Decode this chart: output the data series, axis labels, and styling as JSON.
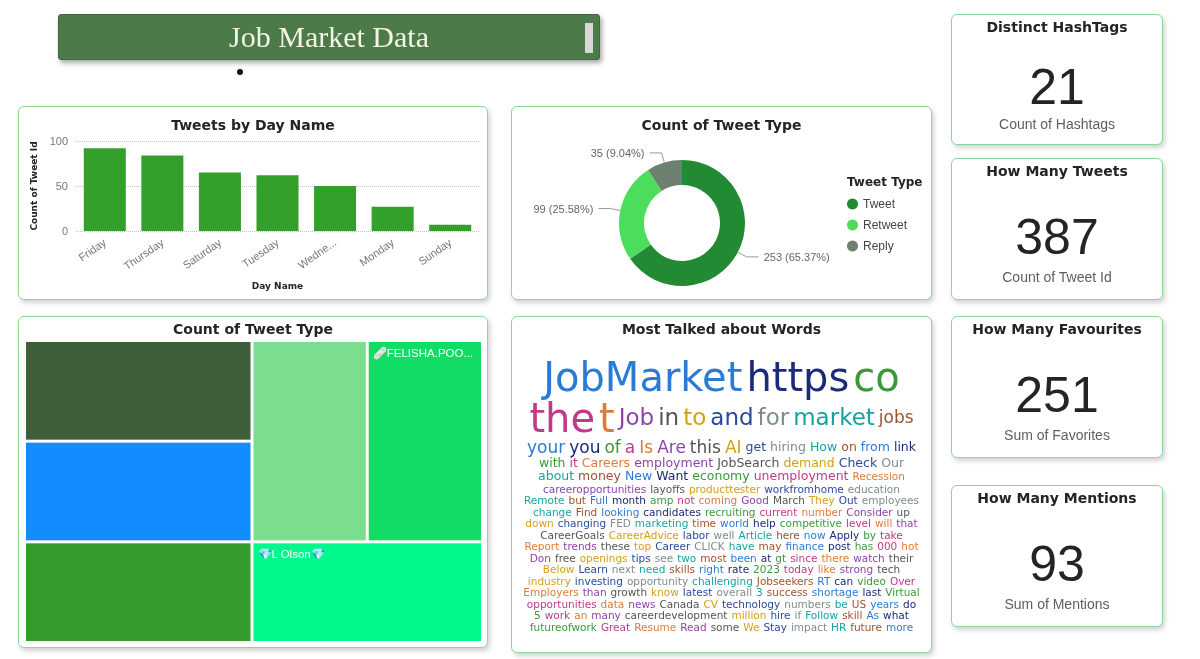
{
  "chart_data": [
    {
      "type": "other",
      "title": "Job Market Data"
    },
    {
      "type": "other",
      "title": "Distinct HashTags",
      "values": [
        21
      ],
      "data_labels": true,
      "xlabel": "Count of Hashtags"
    },
    {
      "type": "bar",
      "title": "Tweets by Day Name",
      "xlabel": "Day Name",
      "ylabel": "Count of Tweet Id",
      "categories": [
        "Friday",
        "Thursday",
        "Saturday",
        "Tuesday",
        "Wedne...",
        "Monday",
        "Sunday"
      ],
      "values": [
        92,
        84,
        65,
        62,
        50,
        27,
        7
      ],
      "color": "#33a02c",
      "ylim": [
        0,
        100
      ],
      "yticks": [
        0,
        50,
        100
      ],
      "grid": "y",
      "legend": false
    },
    {
      "type": "donut",
      "title": "Count of Tweet Type",
      "legend_title": "Tweet Type",
      "categories": [
        "Tweet",
        "Retweet",
        "Reply"
      ],
      "values": [
        253,
        99,
        35
      ],
      "value_labels": [
        "253 (65.37%)",
        "99 (25.58%)",
        "35 (9.04%)"
      ],
      "colors": [
        "#218a32",
        "#4cdd5c",
        "#6e8070"
      ],
      "legend": "right"
    },
    {
      "type": "other",
      "title": "How Many Tweets",
      "values": [
        387
      ],
      "data_labels": true,
      "xlabel": "Count of Tweet Id"
    },
    {
      "type": "other",
      "title": "Count of Tweet Type",
      "categories": [
        null,
        null,
        "🩹FELISHA.POO...",
        null,
        null,
        "💎L Olson💎"
      ],
      "colors": [
        "#3f5f3b",
        "#7bde8f",
        "#10dc66",
        "#118dff",
        "#339c2c",
        "#00f78c"
      ]
    },
    {
      "type": "other",
      "title": "Most Talked about Words",
      "categories": [
        "JobMarket",
        "https",
        "co",
        "the",
        "t",
        "Job",
        "in",
        "to",
        "and",
        "for",
        "market",
        "jobs",
        "your",
        "you",
        "of",
        "a",
        "Is",
        "Are",
        "this",
        "AI",
        "get",
        "hiring",
        "How",
        "on",
        "from",
        "link",
        "with",
        "it",
        "Careers",
        "employment",
        "JobSearch",
        "demand",
        "Check",
        "Our",
        "about",
        "money",
        "New",
        "Want",
        "economy",
        "unemployment",
        "Recession",
        "careeropportunities",
        "layoffs",
        "producttester",
        "workfromhome",
        "education",
        "Remote",
        "but",
        "Full",
        "month",
        "amp",
        "not",
        "coming",
        "Good",
        "March",
        "They",
        "Out",
        "employees",
        "change",
        "Find",
        "looking",
        "candidates",
        "recruiting",
        "current",
        "number",
        "Consider",
        "up",
        "down",
        "changing",
        "FED",
        "marketing",
        "time",
        "world",
        "help",
        "competitive",
        "level",
        "will",
        "that",
        "CareerGoals",
        "CareerAdvice",
        "labor",
        "well",
        "Article",
        "here",
        "now",
        "Apply",
        "by",
        "take",
        "Report",
        "trends",
        "these",
        "top",
        "Career",
        "CLICK",
        "have",
        "may",
        "finance",
        "post",
        "has",
        "000",
        "hot",
        "Don",
        "free",
        "openings",
        "tips",
        "see",
        "two",
        "most",
        "been",
        "at",
        "gt",
        "since",
        "there",
        "watch",
        "their",
        "Below",
        "Learn",
        "next",
        "need",
        "skills",
        "right",
        "rate",
        "2023",
        "today",
        "like",
        "strong",
        "tech",
        "industry",
        "investing",
        "opportunity",
        "challenging",
        "Jobseekers",
        "RT",
        "can",
        "video",
        "Over",
        "Employers",
        "than",
        "growth",
        "know",
        "latest",
        "overall",
        "3",
        "success",
        "shortage",
        "last",
        "Virtual",
        "opportunities",
        "data",
        "news",
        "Canada",
        "CV",
        "technology",
        "numbers",
        "be",
        "US",
        "years",
        "do",
        "5",
        "work",
        "an",
        "many",
        "careerdevelopment",
        "million",
        "hire",
        "if",
        "Follow",
        "skill",
        "As",
        "what",
        "futureofwork",
        "Great",
        "Resume",
        "Read",
        "some",
        "We",
        "Stay",
        "impact",
        "HR",
        "future",
        "more"
      ]
    },
    {
      "type": "other",
      "title": "How Many Favourites",
      "values": [
        251
      ],
      "data_labels": true,
      "xlabel": "Sum of Favorites"
    },
    {
      "type": "other",
      "title": "How Many Mentions",
      "values": [
        93
      ],
      "data_labels": true,
      "xlabel": "Sum of Mentions"
    }
  ]
}
